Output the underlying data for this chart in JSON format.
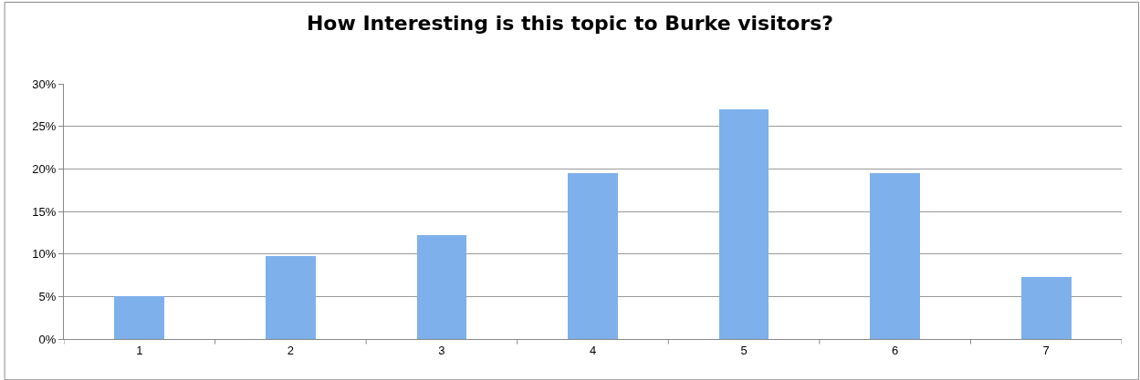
{
  "chart_data": {
    "type": "bar",
    "title": "How Interesting is this topic to Burke visitors?",
    "categories": [
      "1",
      "2",
      "3",
      "4",
      "5",
      "6",
      "7"
    ],
    "values": [
      5,
      9.7,
      12.2,
      19.5,
      27,
      19.5,
      7.3
    ],
    "color": "#7eb0ec",
    "ylim": [
      0,
      30
    ],
    "yticks": [
      {
        "value": 0,
        "label": "0%"
      },
      {
        "value": 5,
        "label": "5%"
      },
      {
        "value": 10,
        "label": "10%"
      },
      {
        "value": 15,
        "label": "15%"
      },
      {
        "value": 20,
        "label": "20%"
      },
      {
        "value": 25,
        "label": "25%"
      },
      {
        "value": 30,
        "label": "30%"
      }
    ],
    "grid": "y",
    "legend": false
  }
}
